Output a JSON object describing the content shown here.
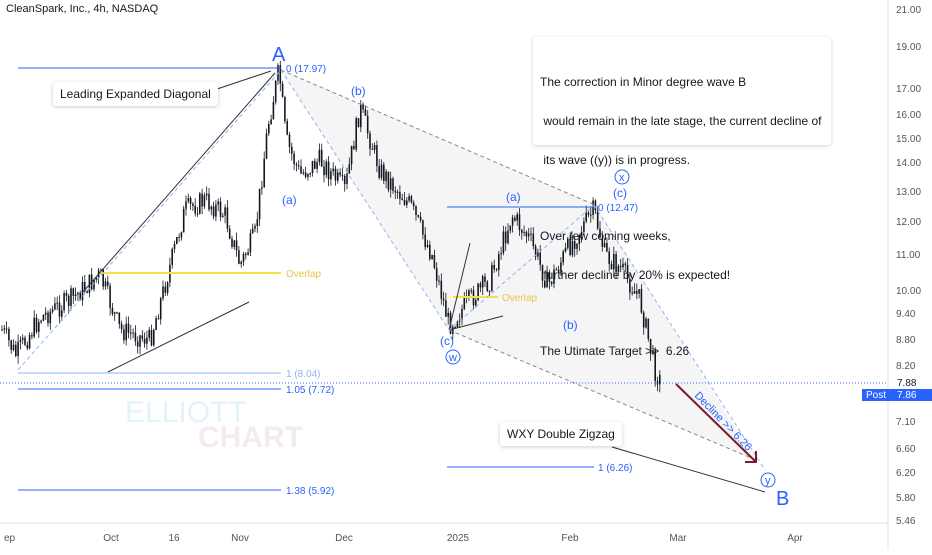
{
  "ticker": "CleanSpark, Inc., 4h, NASDAQ",
  "colors": {
    "candle": "#131722",
    "fib_line": "#2962ff",
    "fib_line_light": "#90b4f5",
    "overlap": "#f5e142",
    "overlap_text": "#e8c547",
    "wave_label": "#2962ff",
    "trend": "#333333",
    "channel": "#888888",
    "arrow": "#7a1b2e",
    "post_badge": "#2962ff"
  },
  "note": {
    "lines1": [
      "The correction in Minor degree wave B",
      " would remain in the late stage, the current decline of",
      " its wave ((y)) is in progress."
    ],
    "lines2": [
      "Over few coming weeks,",
      " further decline by 20% is expected!"
    ],
    "line3": "The Utimate Target >>  6.26"
  },
  "callouts": {
    "diagonal": "Leading Expanded Diagonal",
    "wxy": "WXY Double Zigzag"
  },
  "watermark": [
    "ELLIOTT",
    "CHART"
  ],
  "wave_labels": {
    "A": "A",
    "B": "B",
    "a1": "(a)",
    "b1": "(b)",
    "a2": "(a)",
    "b2": "(b)",
    "c1": "(c)",
    "c2": "(c)",
    "w": "w",
    "x": "x",
    "y": "y"
  },
  "fib_labels": {
    "f0_top": "0 (17.97)",
    "f1": "1 (8.04)",
    "f105": "1.05 (7.72)",
    "f138": "1.38 (5.92)",
    "f0_mid": "0 (12.47)",
    "f1_target": "1 (6.26)"
  },
  "overlap_labels": [
    "Overlap",
    "Overlap"
  ],
  "decline_label": "Decline >> 6.26",
  "price_axis": {
    "ticks": [
      "21.00",
      "19.00",
      "17.00",
      "16.00",
      "15.00",
      "14.00",
      "13.00",
      "12.00",
      "11.00",
      "10.00",
      "9.40",
      "8.80",
      "8.20",
      "7.60",
      "7.10",
      "6.60",
      "6.20",
      "5.80",
      "5.46"
    ],
    "current": "7.88",
    "post_label": "Post",
    "post_value": "7.86"
  },
  "time_axis": [
    "ep",
    "Oct",
    "16",
    "Nov",
    "Dec",
    "2025",
    "Feb",
    "Mar",
    "Apr"
  ],
  "chart_data": {
    "type": "candlestick",
    "title": "CleanSpark, Inc., 4h, NASDAQ",
    "y_scale": "log",
    "ylim": [
      5.46,
      21.0
    ],
    "x_ticks": [
      "Sep",
      "Oct",
      "16",
      "Nov",
      "Dec",
      "2025",
      "Feb",
      "Mar",
      "Apr"
    ],
    "swing_points": [
      {
        "label": "start",
        "x": "mid Sep",
        "y": 8.0
      },
      {
        "label": "A",
        "x": "early Nov",
        "y": 17.97
      },
      {
        "label": "(a)",
        "x": "mid Nov",
        "y": 13.1
      },
      {
        "label": "(b)",
        "x": "early Dec",
        "y": 16.1
      },
      {
        "label": "(c) / w",
        "x": "early Jan",
        "y": 9.1
      },
      {
        "label": "(a)",
        "x": "mid Jan",
        "y": 12.2
      },
      {
        "label": "(b)",
        "x": "late Jan",
        "y": 9.6
      },
      {
        "label": "(c) / x",
        "x": "early Feb",
        "y": 12.47
      },
      {
        "label": "last",
        "x": "late Feb",
        "y": 7.88
      },
      {
        "label": "y / B (projected)",
        "x": "late Mar",
        "y": 6.26
      }
    ],
    "levels": [
      {
        "name": "0 (17.97)",
        "value": 17.97
      },
      {
        "name": "1 (8.04)",
        "value": 8.04
      },
      {
        "name": "1.05 (7.72)",
        "value": 7.72
      },
      {
        "name": "1.38 (5.92)",
        "value": 5.92
      },
      {
        "name": "0 (12.47)",
        "value": 12.47
      },
      {
        "name": "1 (6.26)",
        "value": 6.26
      },
      {
        "name": "Overlap",
        "value": 10.5
      },
      {
        "name": "Overlap",
        "value": 9.85
      }
    ],
    "current_price": 7.88,
    "post_market_price": 7.86
  }
}
